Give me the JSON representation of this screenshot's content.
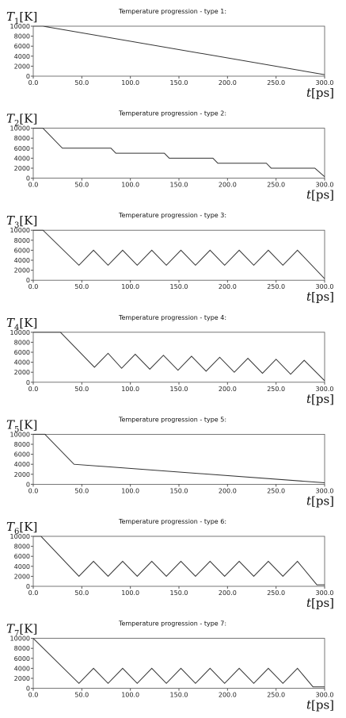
{
  "chart_data": [
    {
      "type": "line",
      "title": "Temperature progression - type 1:",
      "ylabel": {
        "symbol": "T",
        "subscript": "1",
        "unit": "[K]"
      },
      "xlabel": {
        "symbol": "t",
        "unit": "[ps]"
      },
      "color": "#333333",
      "xlim": [
        0,
        300
      ],
      "ylim": [
        0,
        10000
      ],
      "yticks": [
        0,
        2000,
        4000,
        6000,
        8000,
        10000
      ],
      "xticks": [
        {
          "value": 0,
          "label": "0.0"
        },
        {
          "value": 50,
          "label": "50.0"
        },
        {
          "value": 100,
          "label": "100.0"
        },
        {
          "value": 150,
          "label": "150.0"
        },
        {
          "value": 200,
          "label": "200.0"
        },
        {
          "value": 250,
          "label": "250.0"
        },
        {
          "value": 300,
          "label": "300.0"
        }
      ],
      "x": [
        0,
        10,
        300
      ],
      "values": [
        10000,
        10000,
        300
      ]
    },
    {
      "type": "line",
      "title": "Temperature progression - type 2:",
      "ylabel": {
        "symbol": "T",
        "subscript": "2",
        "unit": "[K]"
      },
      "xlabel": {
        "symbol": "t",
        "unit": "[ps]"
      },
      "color": "#333333",
      "xlim": [
        0,
        300
      ],
      "ylim": [
        0,
        10000
      ],
      "yticks": [
        0,
        2000,
        4000,
        6000,
        8000,
        10000
      ],
      "xticks": [
        {
          "value": 0,
          "label": "0.0"
        },
        {
          "value": 50,
          "label": "50.0"
        },
        {
          "value": 100,
          "label": "100.0"
        },
        {
          "value": 150,
          "label": "150.0"
        },
        {
          "value": 200,
          "label": "200.0"
        },
        {
          "value": 250,
          "label": "250.0"
        },
        {
          "value": 300,
          "label": "300.0"
        }
      ],
      "x": [
        0,
        10,
        30,
        80,
        85,
        135,
        140,
        185,
        190,
        240,
        245,
        290,
        300
      ],
      "values": [
        10000,
        10000,
        6000,
        6000,
        5000,
        5000,
        4000,
        4000,
        3000,
        3000,
        2000,
        2000,
        300
      ]
    },
    {
      "type": "line",
      "title": "Temperature progression - type 3:",
      "ylabel": {
        "symbol": "T",
        "subscript": "3",
        "unit": "[K]"
      },
      "xlabel": {
        "symbol": "t",
        "unit": "[ps]"
      },
      "color": "#333333",
      "xlim": [
        0,
        300
      ],
      "ylim": [
        0,
        10000
      ],
      "yticks": [
        0,
        2000,
        4000,
        6000,
        8000,
        10000
      ],
      "xticks": [
        {
          "value": 0,
          "label": "0.0"
        },
        {
          "value": 50,
          "label": "50.0"
        },
        {
          "value": 100,
          "label": "100.0"
        },
        {
          "value": 150,
          "label": "150.0"
        },
        {
          "value": 200,
          "label": "200.0"
        },
        {
          "value": 250,
          "label": "250.0"
        },
        {
          "value": 300,
          "label": "300.0"
        }
      ],
      "x": [
        0,
        10,
        47,
        62,
        77,
        92,
        107,
        122,
        137,
        152,
        167,
        182,
        197,
        212,
        227,
        242,
        257,
        272,
        300
      ],
      "values": [
        10000,
        10000,
        3000,
        6000,
        3000,
        6000,
        3000,
        6000,
        3000,
        6000,
        3000,
        6000,
        3000,
        6000,
        3000,
        6000,
        3000,
        6000,
        300
      ]
    },
    {
      "type": "line",
      "title": "Temperature progression - type 4:",
      "ylabel": {
        "symbol": "T",
        "subscript": "4",
        "unit": "[K]"
      },
      "xlabel": {
        "symbol": "t",
        "unit": "[ps]"
      },
      "color": "#333333",
      "xlim": [
        0,
        300
      ],
      "ylim": [
        0,
        10000
      ],
      "yticks": [
        0,
        2000,
        4000,
        6000,
        8000,
        10000
      ],
      "xticks": [
        {
          "value": 0,
          "label": "0.0"
        },
        {
          "value": 50,
          "label": "50.0"
        },
        {
          "value": 100,
          "label": "100.0"
        },
        {
          "value": 150,
          "label": "150.0"
        },
        {
          "value": 200,
          "label": "200.0"
        },
        {
          "value": 250,
          "label": "250.0"
        },
        {
          "value": 300,
          "label": "300.0"
        }
      ],
      "x": [
        0,
        28,
        63,
        77,
        91,
        105,
        120,
        134,
        149,
        163,
        178,
        192,
        207,
        221,
        236,
        250,
        265,
        279,
        300
      ],
      "values": [
        10000,
        10000,
        3000,
        5800,
        2800,
        5600,
        2600,
        5400,
        2400,
        5200,
        2200,
        5000,
        2000,
        4800,
        1800,
        4600,
        1600,
        4400,
        300
      ]
    },
    {
      "type": "line",
      "title": "Temperature progression - type 5:",
      "ylabel": {
        "symbol": "T",
        "subscript": "5",
        "unit": "[K]"
      },
      "xlabel": {
        "symbol": "t",
        "unit": "[ps]"
      },
      "color": "#333333",
      "xlim": [
        0,
        300
      ],
      "ylim": [
        0,
        10000
      ],
      "yticks": [
        0,
        2000,
        4000,
        6000,
        8000,
        10000
      ],
      "xticks": [
        {
          "value": 0,
          "label": "0.0"
        },
        {
          "value": 50,
          "label": "50.0"
        },
        {
          "value": 100,
          "label": "100.0"
        },
        {
          "value": 150,
          "label": "150.0"
        },
        {
          "value": 200,
          "label": "200.0"
        },
        {
          "value": 250,
          "label": "250.0"
        },
        {
          "value": 300,
          "label": "300.0"
        }
      ],
      "x": [
        0,
        12,
        42,
        300
      ],
      "values": [
        10000,
        10000,
        4000,
        300
      ]
    },
    {
      "type": "line",
      "title": "Temperature progression - type 6:",
      "ylabel": {
        "symbol": "T",
        "subscript": "6",
        "unit": "[K]"
      },
      "xlabel": {
        "symbol": "t",
        "unit": "[ps]"
      },
      "color": "#333333",
      "xlim": [
        0,
        300
      ],
      "ylim": [
        0,
        10000
      ],
      "yticks": [
        0,
        2000,
        4000,
        6000,
        8000,
        10000
      ],
      "xticks": [
        {
          "value": 0,
          "label": "0.0"
        },
        {
          "value": 50,
          "label": "50.0"
        },
        {
          "value": 100,
          "label": "100.0"
        },
        {
          "value": 150,
          "label": "150.0"
        },
        {
          "value": 200,
          "label": "200.0"
        },
        {
          "value": 250,
          "label": "250.0"
        },
        {
          "value": 300,
          "label": "300.0"
        }
      ],
      "x": [
        0,
        8,
        47,
        62,
        77,
        92,
        107,
        122,
        137,
        152,
        167,
        182,
        197,
        212,
        227,
        242,
        257,
        272,
        292,
        300
      ],
      "values": [
        10000,
        10000,
        2000,
        5000,
        2000,
        5000,
        2000,
        5000,
        2000,
        5000,
        2000,
        5000,
        2000,
        5000,
        2000,
        5000,
        2000,
        5000,
        300,
        300
      ]
    },
    {
      "type": "line",
      "title": "Temperature progression - type 7:",
      "ylabel": {
        "symbol": "T",
        "subscript": "7",
        "unit": "[K]"
      },
      "xlabel": {
        "symbol": "t",
        "unit": "[ps]"
      },
      "color": "#333333",
      "xlim": [
        0,
        300
      ],
      "ylim": [
        0,
        10000
      ],
      "yticks": [
        0,
        2000,
        4000,
        6000,
        8000,
        10000
      ],
      "xticks": [
        {
          "value": 0,
          "label": "0.0"
        },
        {
          "value": 50,
          "label": "50.0"
        },
        {
          "value": 100,
          "label": "100.0"
        },
        {
          "value": 150,
          "label": "150.0"
        },
        {
          "value": 200,
          "label": "200.0"
        },
        {
          "value": 250,
          "label": "250.0"
        },
        {
          "value": 300,
          "label": "300.0"
        }
      ],
      "x": [
        0,
        47,
        62,
        77,
        92,
        107,
        122,
        137,
        152,
        167,
        182,
        197,
        212,
        227,
        242,
        257,
        272,
        288,
        300
      ],
      "values": [
        10000,
        1000,
        4000,
        1000,
        4000,
        1000,
        4000,
        1000,
        4000,
        1000,
        4000,
        1000,
        4000,
        1000,
        4000,
        1000,
        4000,
        300,
        300
      ]
    }
  ]
}
